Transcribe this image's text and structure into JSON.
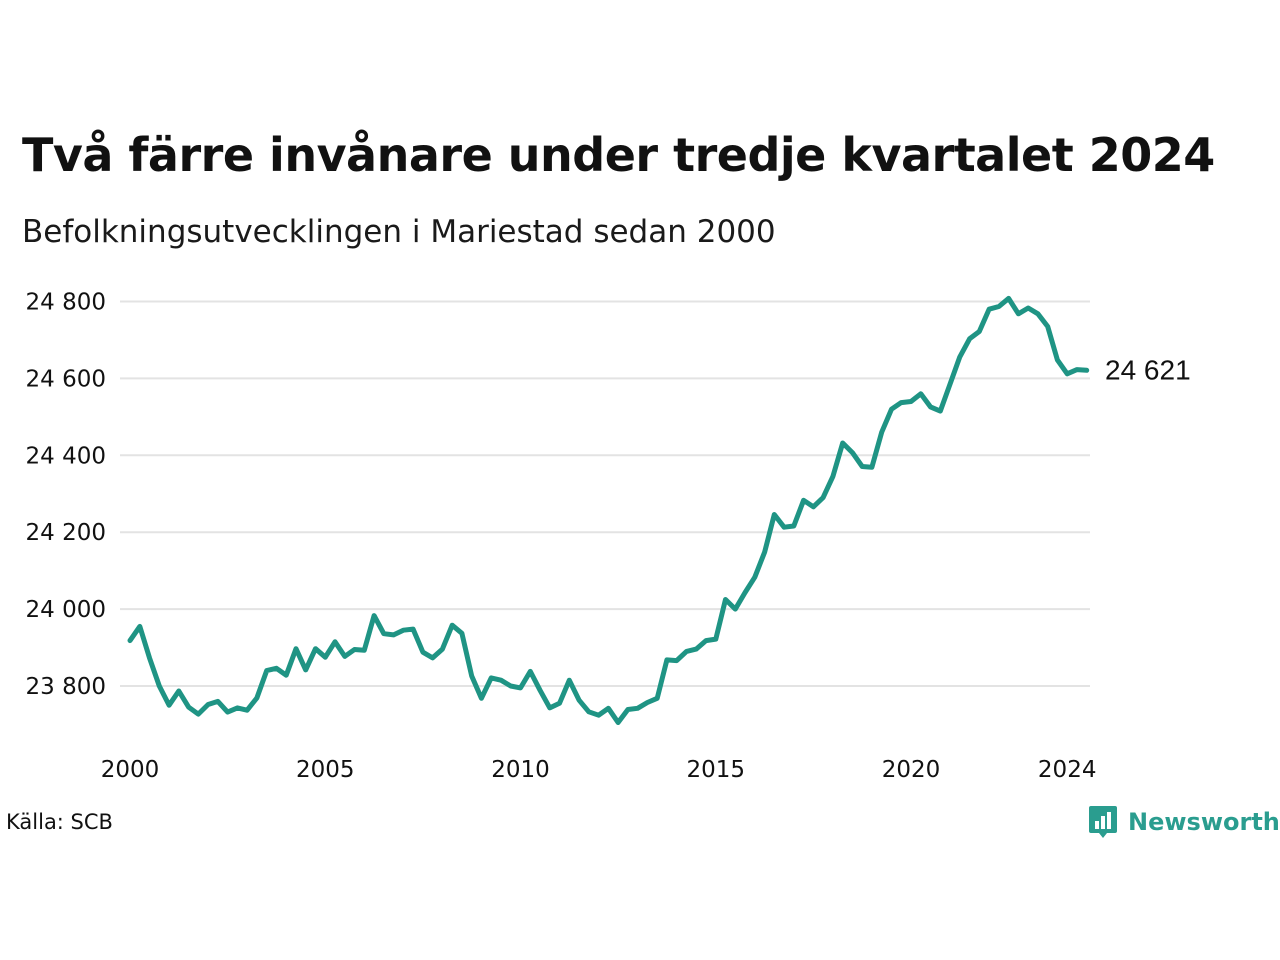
{
  "title": "Två färre invånare under tredje kvartalet 2024",
  "subtitle": "Befolkningsutvecklingen i Mariestad sedan 2000",
  "source": "Källa: SCB",
  "brand": {
    "name": "Newsworthy",
    "color": "#2a9d8f",
    "icon": "bar-chart-logo-icon"
  },
  "chart_data": {
    "type": "line",
    "title": "Två färre invånare under tredje kvartalet 2024",
    "subtitle": "Befolkningsutvecklingen i Mariestad sedan 2000",
    "xlabel": "",
    "ylabel": "",
    "xlim": [
      2000,
      2024.5
    ],
    "ylim": [
      23700,
      24820
    ],
    "x_ticks": [
      2000,
      2005,
      2010,
      2015,
      2020,
      2024
    ],
    "x_tick_labels": [
      "2000",
      "2005",
      "2010",
      "2015",
      "2020",
      "2024"
    ],
    "y_ticks": [
      23800,
      24000,
      24200,
      24400,
      24600,
      24800
    ],
    "y_tick_labels": [
      "23 800",
      "24 000",
      "24 200",
      "24 400",
      "24 600",
      "24 800"
    ],
    "grid": "horizontal",
    "line_color": "#1f9484",
    "end_label": "24 621",
    "series": [
      {
        "x": [
          2000.0,
          2000.25,
          2000.5,
          2000.75,
          2001.0,
          2001.25,
          2001.5,
          2001.75,
          2002.0,
          2002.25,
          2002.5,
          2002.75,
          2003.0,
          2003.25,
          2003.5,
          2003.75,
          2004.0,
          2004.25,
          2004.5,
          2004.75,
          2005.0,
          2005.25,
          2005.5,
          2005.75,
          2006.0,
          2006.25,
          2006.5,
          2006.75,
          2007.0,
          2007.25,
          2007.5,
          2007.75,
          2008.0,
          2008.25,
          2008.5,
          2008.75,
          2009.0,
          2009.25,
          2009.5,
          2009.75,
          2010.0,
          2010.25,
          2010.5,
          2010.75,
          2011.0,
          2011.25,
          2011.5,
          2011.75,
          2012.0,
          2012.25,
          2012.5,
          2012.75,
          2013.0,
          2013.25,
          2013.5,
          2013.75,
          2014.0,
          2014.25,
          2014.5,
          2014.75,
          2015.0,
          2015.25,
          2015.5,
          2015.75,
          2016.0,
          2016.25,
          2016.5,
          2016.75,
          2017.0,
          2017.25,
          2017.5,
          2017.75,
          2018.0,
          2018.25,
          2018.5,
          2018.75,
          2019.0,
          2019.25,
          2019.5,
          2019.75,
          2020.0,
          2020.25,
          2020.5,
          2020.75,
          2021.0,
          2021.25,
          2021.5,
          2021.75,
          2022.0,
          2022.25,
          2022.5,
          2022.75,
          2023.0,
          2023.25,
          2023.5,
          2023.75,
          2024.0,
          2024.25,
          2024.5
        ],
        "y": [
          23918,
          23955,
          23873,
          23800,
          23750,
          23787,
          23745,
          23727,
          23752,
          23760,
          23732,
          23743,
          23737,
          23769,
          23840,
          23846,
          23828,
          23897,
          23842,
          23897,
          23875,
          23915,
          23877,
          23895,
          23893,
          23983,
          23936,
          23933,
          23945,
          23948,
          23888,
          23873,
          23896,
          23958,
          23937,
          23826,
          23768,
          23821,
          23815,
          23800,
          23795,
          23838,
          23789,
          23743,
          23755,
          23815,
          23763,
          23733,
          23724,
          23742,
          23705,
          23739,
          23742,
          23757,
          23768,
          23868,
          23866,
          23890,
          23896,
          23918,
          23922,
          24025,
          24000,
          24043,
          24083,
          24148,
          24246,
          24213,
          24216,
          24283,
          24266,
          24290,
          24345,
          24432,
          24407,
          24371,
          24369,
          24460,
          24520,
          24537,
          24540,
          24560,
          24526,
          24515,
          24585,
          24656,
          24703,
          24722,
          24780,
          24787,
          24808,
          24768,
          24783,
          24768,
          24735,
          24648,
          24612,
          24623,
          24621
        ]
      }
    ]
  }
}
